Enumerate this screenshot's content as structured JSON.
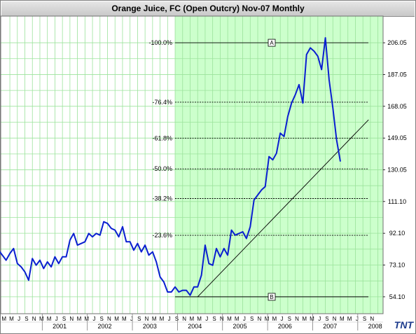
{
  "window": {
    "title": "Orange Juice, FC (Open Outcry) Nov-07  Monthly"
  },
  "logo": {
    "text": "TNT"
  },
  "colors": {
    "price_line": "#0a1fd0",
    "highlight": "#ccffcc",
    "grid": "#9be39b",
    "fib_line": "#000000"
  },
  "chart_data": {
    "type": "line",
    "title": "Orange Juice, FC (Open Outcry) Nov-07  Monthly",
    "x_range": [
      "2000-01",
      "2008-05"
    ],
    "ylim": [
      44,
      222
    ],
    "y_ticks": [
      "206.05",
      "187.05",
      "168.05",
      "149.05",
      "130.05",
      "111.10",
      "92.10",
      "73.10",
      "54.10"
    ],
    "year_labels": [
      "2001",
      "2002",
      "2003",
      "2004",
      "2005",
      "2006",
      "2007",
      "2008"
    ],
    "month_letters": [
      "M",
      "M",
      "J",
      "S",
      "N",
      "M",
      "M",
      "J",
      "S",
      "N",
      "M",
      "M",
      "J",
      "S",
      "N",
      "M",
      "M",
      "J",
      "S",
      "N",
      "M",
      "M",
      "J",
      "S",
      "N",
      "M",
      "M",
      "J",
      "S",
      "N",
      "M",
      "M",
      "J",
      "S",
      "N",
      "M",
      "M",
      "J",
      "S",
      "N",
      "M",
      "M",
      "J",
      "S",
      "N",
      "M",
      "M",
      "J",
      "S",
      "N"
    ],
    "highlight_region": {
      "x_start": "2003-12",
      "x_end": "2008-05"
    },
    "fibonacci": {
      "levels": [
        {
          "label": "-100.0%",
          "value": 206.05,
          "marker": "A"
        },
        {
          "label": "-76.4%",
          "value": 170.5
        },
        {
          "label": "-61.8%",
          "value": 149.0
        },
        {
          "label": "-50.0%",
          "value": 130.6
        },
        {
          "label": "-38.2%",
          "value": 112.9
        },
        {
          "label": "-23.6%",
          "value": 90.9
        },
        {
          "label": "",
          "value": 54.1,
          "marker": "B"
        }
      ],
      "x_start": "2003-12",
      "x_end": "2008-05"
    },
    "trendline": {
      "points": [
        [
          "2004-06",
          54.1
        ],
        [
          "2008-05",
          160.0
        ]
      ]
    },
    "series": [
      {
        "x": [
          "2000-01",
          "2000-02",
          "2000-03",
          "2000-04",
          "2000-05",
          "2000-06",
          "2000-07",
          "2000-08",
          "2000-09",
          "2000-10",
          "2000-11",
          "2000-12",
          "2001-01",
          "2001-02",
          "2001-03",
          "2001-04",
          "2001-05",
          "2001-06",
          "2001-07",
          "2001-08",
          "2001-09",
          "2001-10",
          "2001-11",
          "2001-12",
          "2002-01",
          "2002-02",
          "2002-03",
          "2002-04",
          "2002-05",
          "2002-06",
          "2002-07",
          "2002-08",
          "2002-09",
          "2002-10",
          "2002-11",
          "2002-12",
          "2003-01",
          "2003-02",
          "2003-03",
          "2003-04",
          "2003-05",
          "2003-06",
          "2003-07",
          "2003-08",
          "2003-09",
          "2003-10",
          "2003-11",
          "2003-12",
          "2004-01",
          "2004-02",
          "2004-03",
          "2004-04",
          "2004-05",
          "2004-06",
          "2004-07",
          "2004-08",
          "2004-09",
          "2004-10",
          "2004-11",
          "2004-12",
          "2005-01",
          "2005-02",
          "2005-03",
          "2005-04",
          "2005-05",
          "2005-06",
          "2005-07",
          "2005-08",
          "2005-09",
          "2005-10",
          "2005-11",
          "2005-12",
          "2006-01",
          "2006-02",
          "2006-03",
          "2006-04",
          "2006-05",
          "2006-06",
          "2006-07",
          "2006-08",
          "2006-09",
          "2006-10",
          "2006-11",
          "2006-12",
          "2007-01",
          "2007-02",
          "2007-03",
          "2007-04",
          "2007-05",
          "2007-06",
          "2007-07",
          "2007-08"
        ],
        "values": [
          82,
          79,
          76,
          80,
          83,
          74,
          72,
          69,
          64,
          77,
          73,
          76,
          71,
          75,
          72,
          78,
          74,
          78,
          78,
          88,
          92,
          85,
          86,
          87,
          92,
          90,
          92,
          91,
          99,
          98,
          95,
          94,
          90,
          96,
          87,
          87,
          82,
          86,
          81,
          85,
          79,
          81,
          75,
          66,
          63,
          57,
          57,
          60,
          57,
          58,
          58,
          55,
          60,
          60,
          67,
          85,
          74,
          73,
          83,
          78,
          83,
          79,
          94,
          91,
          92,
          93,
          89,
          96,
          112,
          115,
          118,
          120,
          138,
          136,
          140,
          152,
          150,
          162,
          170,
          175,
          181,
          170,
          199,
          203,
          201,
          198,
          190,
          209,
          184,
          167,
          148,
          135
        ]
      }
    ]
  }
}
